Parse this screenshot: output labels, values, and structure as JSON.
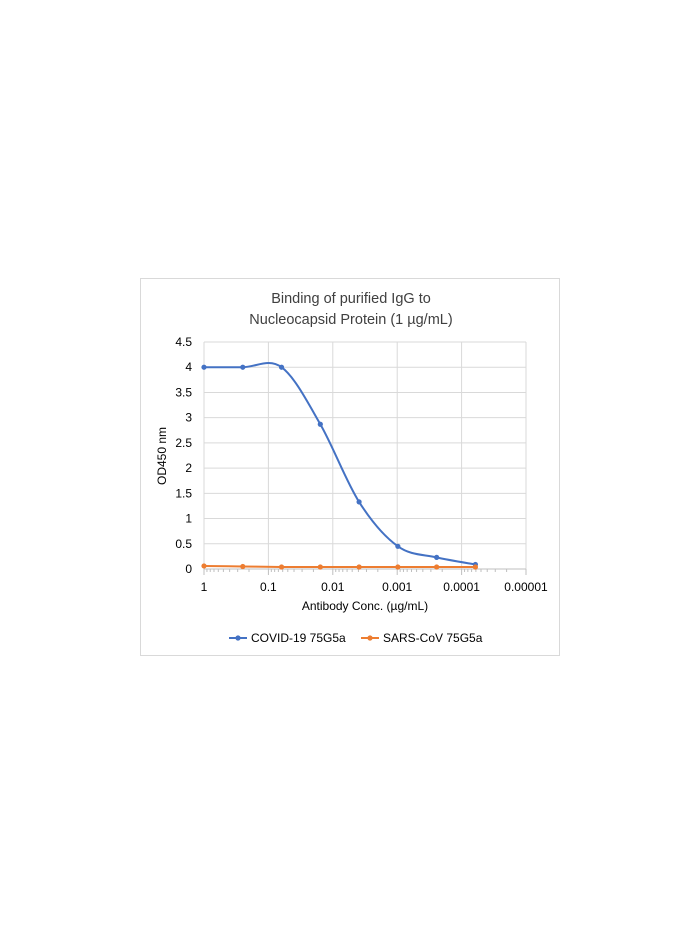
{
  "chart_data": {
    "type": "scatter",
    "title_lines": [
      "Binding of purified IgG to",
      "Nucleocapsid Protein (1 µg/mL)"
    ],
    "xlabel": "Antibody Conc. (µg/mL)",
    "ylabel": "OD450 nm",
    "x_scale": "log",
    "x_reversed": true,
    "xlim": [
      1,
      1e-05
    ],
    "ylim": [
      0,
      4.5
    ],
    "x_tick_labels": [
      "1",
      "0.1",
      "0.01",
      "0.001",
      "0.0001",
      "0.00001"
    ],
    "y_tick_labels": [
      "0",
      "0.5",
      "1",
      "1.5",
      "2",
      "2.5",
      "3",
      "3.5",
      "4",
      "4.5"
    ],
    "grid": true,
    "legend_position": "bottom",
    "smooth_lines": true,
    "series": [
      {
        "name": "COVID-19 75G5a",
        "color": "#4472C4",
        "x": [
          1,
          0.25,
          0.0625,
          0.015625,
          0.00390625,
          0.0009765625,
          0.000244140625,
          6.103515625e-05
        ],
        "y": [
          4.0,
          4.0,
          4.0,
          2.87,
          1.33,
          0.45,
          0.23,
          0.09
        ]
      },
      {
        "name": "SARS-CoV 75G5a",
        "color": "#ED7D31",
        "x": [
          1,
          0.25,
          0.0625,
          0.015625,
          0.00390625,
          0.0009765625,
          0.000244140625,
          6.103515625e-05
        ],
        "y": [
          0.06,
          0.05,
          0.04,
          0.04,
          0.04,
          0.04,
          0.04,
          0.04
        ]
      }
    ]
  }
}
